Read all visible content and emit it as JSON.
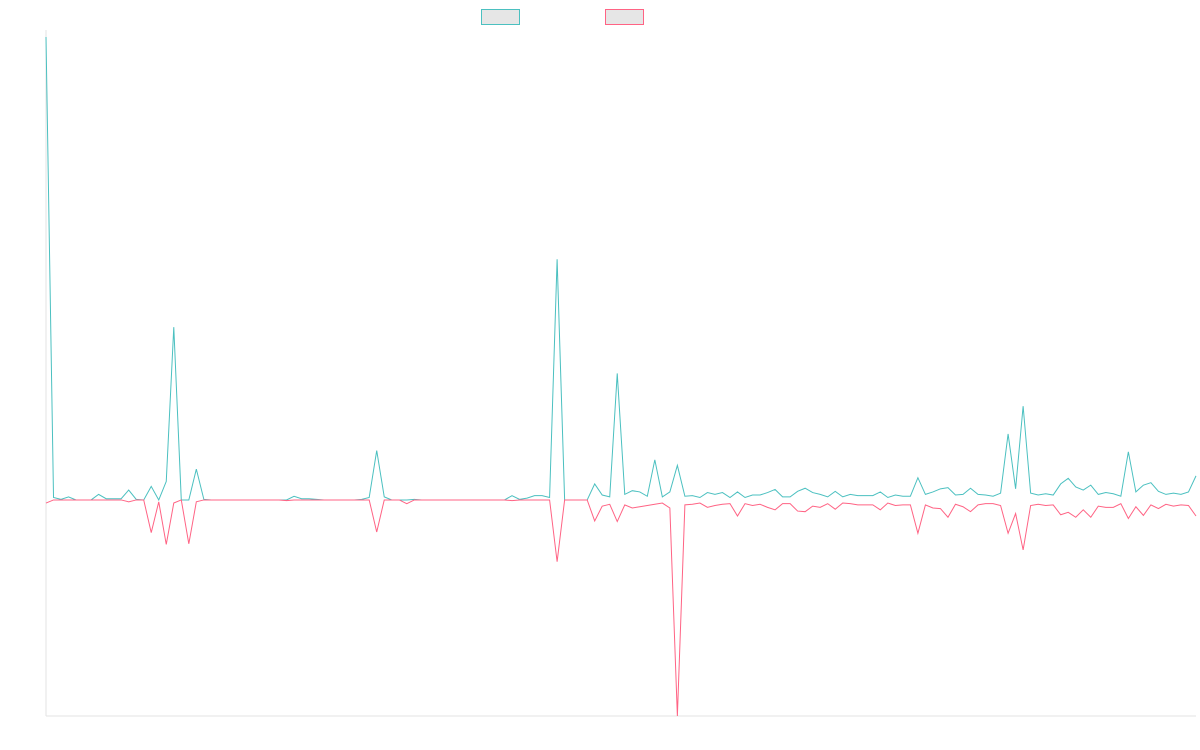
{
  "chart_data": {
    "type": "line",
    "title": "",
    "xlabel": "",
    "ylabel": "",
    "x_count": 154,
    "ylim": [
      -35,
      75
    ],
    "grid": false,
    "legend_position": "top-center",
    "series": [
      {
        "name": "",
        "color": "#4bc0c0",
        "values": [
          75,
          0.4,
          0.1,
          0.5,
          0,
          0,
          0,
          0.9,
          0.2,
          0.2,
          0.2,
          1.6,
          0.1,
          0,
          2.2,
          0,
          3,
          28,
          0,
          0,
          5,
          0.1,
          0,
          0,
          0,
          0,
          0,
          0,
          0,
          0,
          0,
          0,
          0,
          0.6,
          0.2,
          0.2,
          0.1,
          0,
          0,
          0,
          0,
          0,
          0.1,
          0.4,
          8,
          0.5,
          0,
          0,
          0,
          0.1,
          0,
          0,
          0,
          0,
          0,
          0,
          0,
          0,
          0,
          0,
          0,
          0,
          0.7,
          0.1,
          0.3,
          0.7,
          0.7,
          0.4,
          39,
          0,
          0,
          0,
          0,
          2.6,
          0.8,
          0.5,
          20.5,
          0.9,
          1.5,
          1.3,
          0.6,
          6.5,
          0.5,
          1.3,
          5.6,
          0.6,
          0.7,
          0.4,
          1.2,
          0.9,
          1.2,
          0.4,
          1.3,
          0.4,
          0.8,
          0.8,
          1.2,
          1.7,
          0.5,
          0.5,
          1.4,
          1.9,
          1.2,
          0.9,
          0.5,
          1.4,
          0.5,
          0.9,
          0.7,
          0.7,
          0.7,
          1.3,
          0.4,
          0.8,
          0.6,
          0.6,
          3.6,
          0.9,
          1.3,
          1.8,
          2.0,
          0.8,
          0.9,
          1.9,
          0.9,
          0.8,
          0.6,
          1.1,
          10.7,
          1.8,
          15.2,
          1.1,
          0.8,
          1.0,
          0.8,
          2.6,
          3.5,
          2.1,
          1.6,
          2.4,
          0.9,
          1.2,
          1.0,
          0.6,
          7.8,
          1.3,
          2.4,
          2.8,
          1.4,
          0.9,
          1.1,
          0.9,
          1.3,
          3.9
        ]
      },
      {
        "name": "",
        "color": "#ff6384",
        "values": [
          -0.5,
          0,
          0,
          0,
          0,
          0,
          0,
          0,
          0,
          0,
          0,
          -0.3,
          0,
          0,
          -5.3,
          -0.3,
          -7.2,
          -0.5,
          0,
          -7.1,
          -0.3,
          0,
          0,
          0,
          0,
          0,
          0,
          0,
          0,
          0,
          0,
          0,
          -0.1,
          0,
          0,
          0,
          0,
          0,
          0,
          0,
          0,
          0,
          0,
          0,
          -5.2,
          0,
          0,
          0,
          -0.6,
          0,
          0,
          0,
          0,
          0,
          0,
          0,
          0,
          0,
          0,
          0,
          0,
          0,
          -0.1,
          0,
          0,
          0,
          0,
          0,
          -10,
          0,
          0,
          0,
          0,
          -3.4,
          -1.0,
          -0.7,
          -3.5,
          -0.8,
          -1.3,
          -1.1,
          -0.9,
          -0.7,
          -0.5,
          -1.3,
          -35,
          -0.8,
          -0.7,
          -0.5,
          -1.2,
          -0.9,
          -0.7,
          -0.6,
          -2.6,
          -0.6,
          -0.9,
          -0.7,
          -1.2,
          -1.6,
          -0.6,
          -0.6,
          -1.8,
          -1.9,
          -1.0,
          -1.2,
          -0.6,
          -1.5,
          -0.5,
          -0.6,
          -0.8,
          -0.8,
          -0.8,
          -1.6,
          -0.5,
          -0.9,
          -0.8,
          -0.8,
          -5.4,
          -0.8,
          -1.3,
          -1.4,
          -2.8,
          -0.7,
          -1.1,
          -1.9,
          -0.8,
          -0.6,
          -0.6,
          -0.9,
          -5.4,
          -2.2,
          -8.1,
          -0.9,
          -0.7,
          -0.9,
          -0.8,
          -2.4,
          -2.0,
          -2.8,
          -1.6,
          -2.8,
          -1.0,
          -1.2,
          -1.2,
          -0.6,
          -3.0,
          -1.1,
          -2.5,
          -0.8,
          -1.4,
          -0.7,
          -1.0,
          -0.8,
          -0.9,
          -2.6
        ]
      }
    ]
  }
}
